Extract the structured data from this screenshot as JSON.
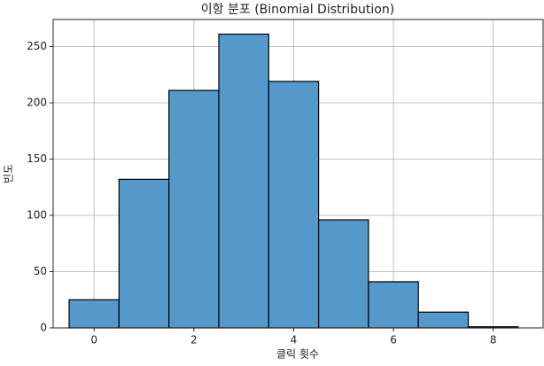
{
  "chart_data": {
    "type": "histogram",
    "title": "이항 분포 (Binomial Distribution)",
    "x_label": "클릭 횟수",
    "y_label": "빈도",
    "bins": [
      -0.5,
      0.5,
      1.5,
      2.5,
      3.5,
      4.5,
      5.5,
      6.5,
      7.5,
      8.5
    ],
    "values": [
      25,
      132,
      211,
      261,
      219,
      96,
      41,
      14,
      1
    ],
    "color": "#5499c9",
    "xlim": [
      -0.82,
      9.0
    ],
    "xticks": [
      0,
      2,
      4,
      6,
      8
    ],
    "ylim": [
      0,
      274
    ],
    "yticks": [
      0,
      50,
      100,
      150,
      200,
      250
    ],
    "grid": true
  }
}
